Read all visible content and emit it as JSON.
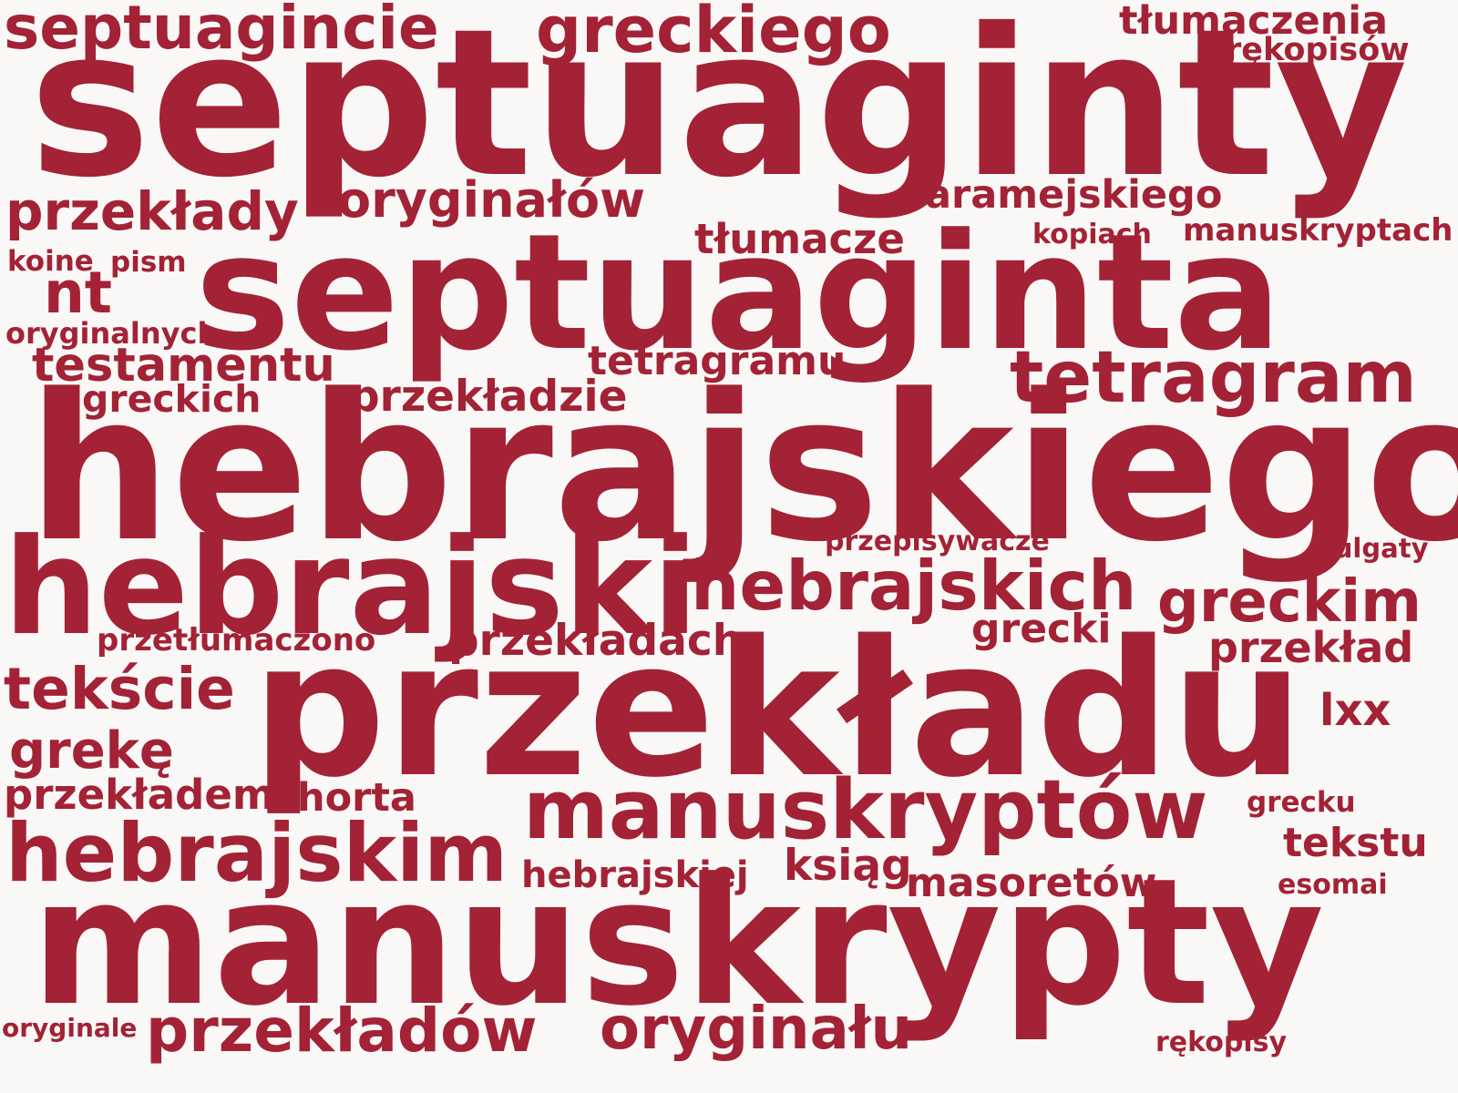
{
  "palette": {
    "text": "#a32236",
    "background": "#f9f8f6"
  },
  "words": [
    {
      "text": "septuagincie"
    },
    {
      "text": "greckiego"
    },
    {
      "text": "tłumaczenia"
    },
    {
      "text": "rękopisów"
    },
    {
      "text": "septuaginty"
    },
    {
      "text": "przekłady"
    },
    {
      "text": "oryginałów"
    },
    {
      "text": "aramejskiego"
    },
    {
      "text": "tłumacze"
    },
    {
      "text": "kopiach"
    },
    {
      "text": "manuskryptach"
    },
    {
      "text": "koine"
    },
    {
      "text": "pism"
    },
    {
      "text": "nt"
    },
    {
      "text": "septuaginta"
    },
    {
      "text": "oryginalnych"
    },
    {
      "text": "testamentu"
    },
    {
      "text": "tetragramu"
    },
    {
      "text": "tetragram"
    },
    {
      "text": "greckich"
    },
    {
      "text": "przekładzie"
    },
    {
      "text": "hebrajskiego"
    },
    {
      "text": "przepisywacze"
    },
    {
      "text": "wulgaty"
    },
    {
      "text": "hebrajski"
    },
    {
      "text": "hebrajskich"
    },
    {
      "text": "greckim"
    },
    {
      "text": "przetłumaczono"
    },
    {
      "text": "przekładach"
    },
    {
      "text": "grecki"
    },
    {
      "text": "przekład"
    },
    {
      "text": "tekście"
    },
    {
      "text": "lxx"
    },
    {
      "text": "przekładu"
    },
    {
      "text": "grekę"
    },
    {
      "text": "przekładem"
    },
    {
      "text": "horta"
    },
    {
      "text": "manuskryptów"
    },
    {
      "text": "grecku"
    },
    {
      "text": "tekstu"
    },
    {
      "text": "hebrajskim"
    },
    {
      "text": "ksiąg"
    },
    {
      "text": "hebrajskiej"
    },
    {
      "text": "masoretów"
    },
    {
      "text": "esomai"
    },
    {
      "text": "manuskrypty"
    },
    {
      "text": "oryginale"
    },
    {
      "text": "przekładów"
    },
    {
      "text": "oryginału"
    },
    {
      "text": "rękopisy"
    }
  ]
}
